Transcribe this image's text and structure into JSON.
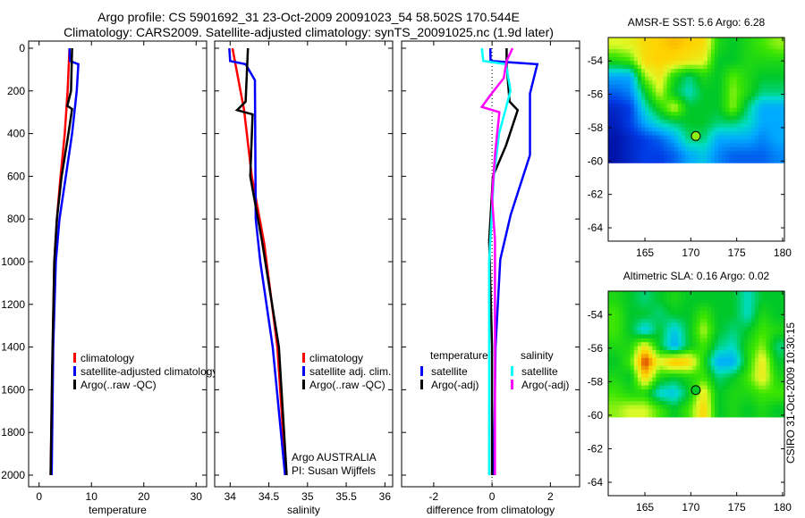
{
  "title": {
    "line1": "Argo profile: CS 5901692_31 23-Oct-2009 20091023_54 58.502S 170.544E",
    "line2": "Climatology: CARS2009. Satellite-adjusted climatology: synTS_20091025.nc (1.9d later)"
  },
  "stamp": "CSIRO 31-Oct-2009 10:30:15",
  "credit": {
    "line1": "Argo AUSTRALIA",
    "line2": "PI: Susan Wijffels"
  },
  "colors": {
    "red": "#ff0000",
    "blue": "#0000ff",
    "black": "#000000",
    "cyan": "#00ffff",
    "magenta": "#ff00ff"
  },
  "chart_data": [
    {
      "type": "line",
      "id": "temperature",
      "xlabel": "temperature",
      "ylabel": "",
      "xlim": [
        -2,
        32
      ],
      "ylim": [
        2000,
        0
      ],
      "xticks": [
        "0",
        "10",
        "20",
        "30"
      ],
      "xtick_values": [
        0,
        10,
        20,
        30
      ],
      "yticks": [
        "0",
        "200",
        "400",
        "600",
        "800",
        "1000",
        "1200",
        "1400",
        "1600",
        "1800",
        "2000"
      ],
      "legend": [
        "climatology",
        "satellite-adjusted climatology",
        "Argo(..raw -QC)"
      ],
      "series": [
        {
          "name": "climatology",
          "color": "#ff0000",
          "depth": [
            0,
            200,
            400,
            600,
            800,
            1000,
            1500,
            2000
          ],
          "values": [
            5.8,
            5.45,
            4.9,
            4.1,
            3.4,
            2.9,
            2.55,
            2.2
          ]
        },
        {
          "name": "satellite-adjusted climatology",
          "color": "#0000ff",
          "depth": [
            0,
            60,
            75,
            200,
            400,
            600,
            800,
            1000,
            1400,
            2000
          ],
          "values": [
            5.8,
            5.9,
            7.5,
            7.2,
            6.3,
            5.1,
            3.9,
            3.2,
            2.7,
            2.4
          ]
        },
        {
          "name": "Argo(..raw -QC)",
          "color": "#000000",
          "depth": [
            0,
            200,
            270,
            285,
            400,
            600,
            800,
            1000,
            1500,
            2000
          ],
          "values": [
            6.3,
            6.1,
            5.4,
            6.3,
            5.6,
            4.3,
            3.4,
            2.9,
            2.5,
            2.2
          ]
        }
      ]
    },
    {
      "type": "line",
      "id": "salinity",
      "xlabel": "salinity",
      "xlim": [
        33.8,
        36.1
      ],
      "ylim": [
        2000,
        0
      ],
      "xticks": [
        "34",
        "34.5",
        "35",
        "35.5",
        "36"
      ],
      "xtick_values": [
        34,
        34.5,
        35,
        35.5,
        36
      ],
      "legend": [
        "climatology",
        "satellite adj. clim.",
        "Argo(..raw -QC)"
      ],
      "series": [
        {
          "name": "climatology",
          "color": "#ff0000",
          "depth": [
            0,
            290,
            600,
            915,
            1400,
            2000
          ],
          "values": [
            34.03,
            34.18,
            34.28,
            34.44,
            34.61,
            34.72
          ]
        },
        {
          "name": "satellite adj. clim.",
          "color": "#0000ff",
          "depth": [
            0,
            60,
            75,
            150,
            800,
            1000,
            1400,
            2000
          ],
          "values": [
            33.99,
            34.0,
            34.2,
            34.32,
            34.33,
            34.39,
            34.55,
            34.71
          ]
        },
        {
          "name": "Argo(..raw -QC)",
          "color": "#000000",
          "depth": [
            0,
            250,
            290,
            310,
            600,
            900,
            1400,
            2000
          ],
          "values": [
            34.23,
            34.2,
            34.09,
            34.29,
            34.26,
            34.41,
            34.63,
            34.73
          ]
        }
      ]
    },
    {
      "type": "line",
      "id": "difference",
      "xlabel": "difference from climatology",
      "xlim": [
        -3.1,
        3.0
      ],
      "ylim": [
        2000,
        0
      ],
      "xticks": [
        "-2",
        "0",
        "2"
      ],
      "xtick_values": [
        -2,
        0,
        2
      ],
      "legend_headers": [
        "temperature",
        "salinity"
      ],
      "legend": [
        "satellite",
        "Argo(-adj)",
        "satellite",
        "Argo(-adj)"
      ],
      "series": [
        {
          "name": "temperature satellite",
          "color": "#0000ff",
          "depth": [
            0,
            60,
            75,
            213,
            500,
            780,
            990,
            1400,
            2000
          ],
          "values": [
            -0.06,
            -0.05,
            1.55,
            1.3,
            1.3,
            0.64,
            0.28,
            0.12,
            0.06
          ]
        },
        {
          "name": "temperature Argo(-adj)",
          "color": "#000000",
          "depth": [
            0,
            75,
            250,
            290,
            455,
            600,
            900,
            1400,
            2000
          ],
          "values": [
            0.5,
            0.5,
            0.6,
            0.88,
            0.48,
            0.03,
            -0.1,
            0.0,
            0.0
          ]
        },
        {
          "name": "salinity satellite",
          "color": "#00ffff",
          "depth": [
            0,
            60,
            75,
            200,
            400,
            600,
            1000,
            1500,
            2000
          ],
          "values": [
            -0.35,
            -0.3,
            0.48,
            0.63,
            0.24,
            0.06,
            -0.1,
            -0.1,
            -0.1
          ]
        },
        {
          "name": "salinity Argo(-adj)",
          "color": "#ff00ff",
          "depth": [
            0,
            60,
            140,
            220,
            275,
            300,
            500,
            700,
            900,
            2000
          ],
          "values": [
            0.7,
            0.5,
            0.4,
            -0.06,
            -0.35,
            0.25,
            0.1,
            0.0,
            0.1,
            0.1
          ]
        }
      ]
    },
    {
      "type": "heatmap",
      "id": "sst",
      "title": "AMSR-E SST: 5.6 Argo: 6.28",
      "xlim": [
        161,
        180.2
      ],
      "ylim": [
        -64.8,
        -52.6
      ],
      "data_lat_min": -60.1,
      "xticks": [
        "165",
        "170",
        "175",
        "180"
      ],
      "xtick_values": [
        165,
        170,
        175,
        180
      ],
      "yticks": [
        "-54",
        "-56",
        "-58",
        "-60",
        "-62",
        "-64"
      ],
      "ytick_values": [
        -54,
        -56,
        -58,
        -60,
        -62,
        -64
      ],
      "marker": {
        "lon": 170.544,
        "lat": -58.502,
        "level": 0.65
      },
      "grid": [
        [
          0.7,
          0.72,
          0.78,
          0.8,
          0.82,
          0.8,
          0.78,
          0.55,
          0.5,
          0.55,
          0.6,
          0.65
        ],
        [
          0.55,
          0.6,
          0.78,
          0.8,
          0.78,
          0.75,
          0.72,
          0.5,
          0.5,
          0.55,
          0.55,
          0.55
        ],
        [
          0.3,
          0.3,
          0.65,
          0.75,
          0.55,
          0.45,
          0.55,
          0.5,
          0.62,
          0.55,
          0.5,
          0.5
        ],
        [
          0.2,
          0.25,
          0.5,
          0.7,
          0.5,
          0.4,
          0.5,
          0.5,
          0.65,
          0.55,
          0.45,
          0.45
        ],
        [
          0.1,
          0.15,
          0.4,
          0.55,
          0.7,
          0.5,
          0.5,
          0.5,
          0.65,
          0.45,
          0.3,
          0.3
        ],
        [
          0.08,
          0.15,
          0.3,
          0.4,
          0.45,
          0.5,
          0.5,
          0.45,
          0.45,
          0.4,
          0.3,
          0.3
        ],
        [
          0.05,
          0.1,
          0.15,
          0.2,
          0.3,
          0.45,
          0.45,
          0.3,
          0.3,
          0.3,
          0.25,
          0.3
        ],
        [
          0.05,
          0.1,
          0.15,
          0.15,
          0.2,
          0.3,
          0.35,
          0.25,
          0.2,
          0.2,
          0.2,
          0.25
        ]
      ]
    },
    {
      "type": "heatmap",
      "id": "sla",
      "title": "Altimetric SLA: 0.16 Argo: 0.02",
      "xlim": [
        161,
        180.2
      ],
      "ylim": [
        -64.8,
        -52.6
      ],
      "data_lat_min": -60.1,
      "xticks": [
        "165",
        "170",
        "175",
        "180"
      ],
      "xtick_values": [
        165,
        170,
        175,
        180
      ],
      "yticks": [
        "-54",
        "-56",
        "-58",
        "-60",
        "-62",
        "-64"
      ],
      "ytick_values": [
        -54,
        -56,
        -58,
        -60,
        -62,
        -64
      ],
      "marker": {
        "lon": 170.544,
        "lat": -58.502,
        "level": 0.5
      },
      "grid": [
        [
          0.55,
          0.5,
          0.45,
          0.5,
          0.55,
          0.5,
          0.5,
          0.5,
          0.5,
          0.4,
          0.5,
          0.5
        ],
        [
          0.6,
          0.5,
          0.5,
          0.45,
          0.5,
          0.5,
          0.6,
          0.5,
          0.5,
          0.4,
          0.55,
          0.5
        ],
        [
          0.6,
          0.5,
          0.35,
          0.5,
          0.35,
          0.5,
          0.68,
          0.5,
          0.45,
          0.5,
          0.6,
          0.55
        ],
        [
          0.55,
          0.55,
          0.75,
          0.5,
          0.3,
          0.5,
          0.6,
          0.45,
          0.4,
          0.55,
          0.65,
          0.45
        ],
        [
          0.5,
          0.6,
          0.95,
          0.72,
          0.85,
          0.8,
          0.55,
          0.3,
          0.3,
          0.55,
          0.75,
          0.5
        ],
        [
          0.55,
          0.5,
          0.8,
          0.55,
          0.5,
          0.55,
          0.6,
          0.45,
          0.5,
          0.6,
          0.75,
          0.55
        ],
        [
          0.6,
          0.55,
          0.55,
          0.38,
          0.35,
          0.5,
          0.75,
          0.5,
          0.55,
          0.55,
          0.6,
          0.6
        ],
        [
          0.65,
          0.7,
          0.7,
          0.6,
          0.5,
          0.6,
          0.8,
          0.5,
          0.55,
          0.5,
          0.55,
          0.5
        ]
      ]
    }
  ]
}
